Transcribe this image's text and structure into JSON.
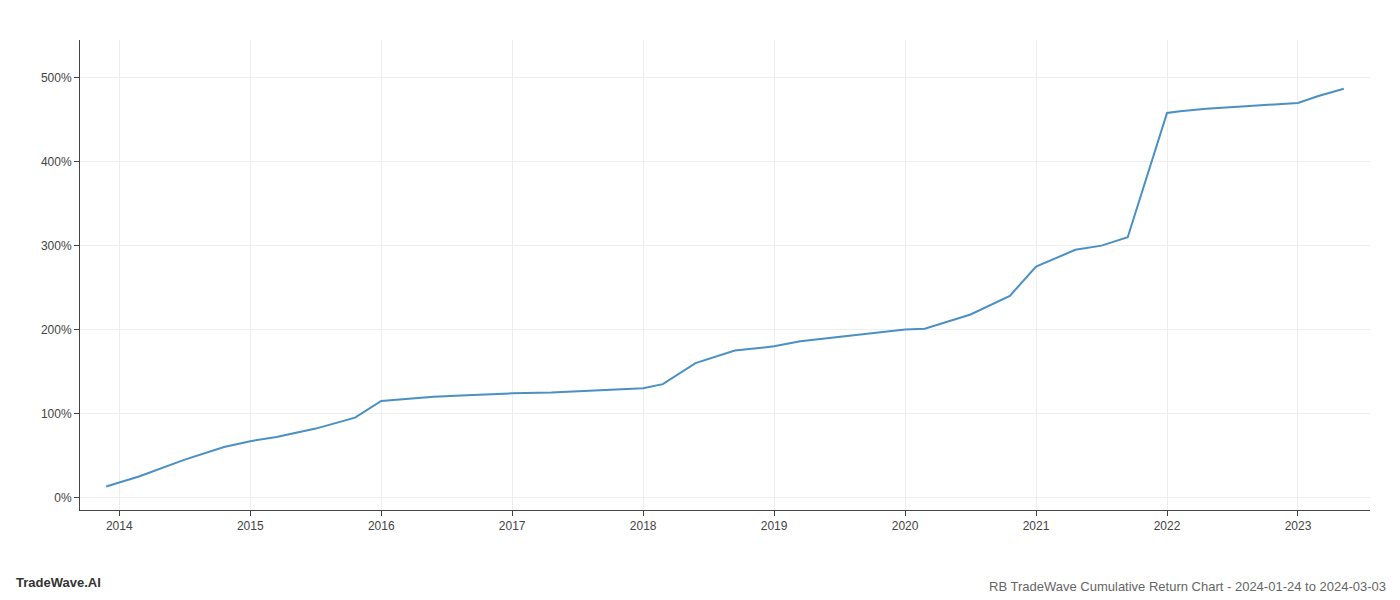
{
  "chart_data": {
    "type": "line",
    "title": "RB TradeWave Cumulative Return Chart - 2024-01-24 to 2024-03-03",
    "annotations": [
      "TradeWave.AI"
    ],
    "x": [
      2013.9,
      2014.15,
      2014.5,
      2014.8,
      2015.0,
      2015.2,
      2015.5,
      2015.8,
      2016.0,
      2016.15,
      2016.4,
      2016.7,
      2017.0,
      2017.3,
      2017.6,
      2017.85,
      2018.0,
      2018.15,
      2018.4,
      2018.7,
      2019.0,
      2019.2,
      2019.5,
      2019.75,
      2020.0,
      2020.15,
      2020.5,
      2020.8,
      2021.0,
      2021.3,
      2021.5,
      2021.7,
      2022.0,
      2022.1,
      2022.3,
      2022.6,
      2022.8,
      2023.0,
      2023.15,
      2023.35
    ],
    "values": [
      13,
      25,
      45,
      60,
      67,
      72,
      82,
      95,
      115,
      117,
      120,
      122,
      124,
      125,
      127,
      129,
      130,
      135,
      160,
      175,
      180,
      186,
      191,
      195,
      200,
      201,
      218,
      240,
      275,
      295,
      300,
      310,
      458,
      460,
      463,
      466,
      468,
      470,
      478,
      487
    ],
    "color": "#4a90c4",
    "xlim": [
      2013.7,
      2023.55
    ],
    "xticks": [
      2014,
      2015,
      2016,
      2017,
      2018,
      2019,
      2020,
      2021,
      2022,
      2023
    ],
    "ylim": [
      -15,
      545
    ],
    "yticks": [
      {
        "value": 0,
        "label": "0%"
      },
      {
        "value": 100,
        "label": "100%"
      },
      {
        "value": 200,
        "label": "200%"
      },
      {
        "value": 300,
        "label": "300%"
      },
      {
        "value": 400,
        "label": "400%"
      },
      {
        "value": 500,
        "label": "500%"
      }
    ],
    "grid": true
  }
}
